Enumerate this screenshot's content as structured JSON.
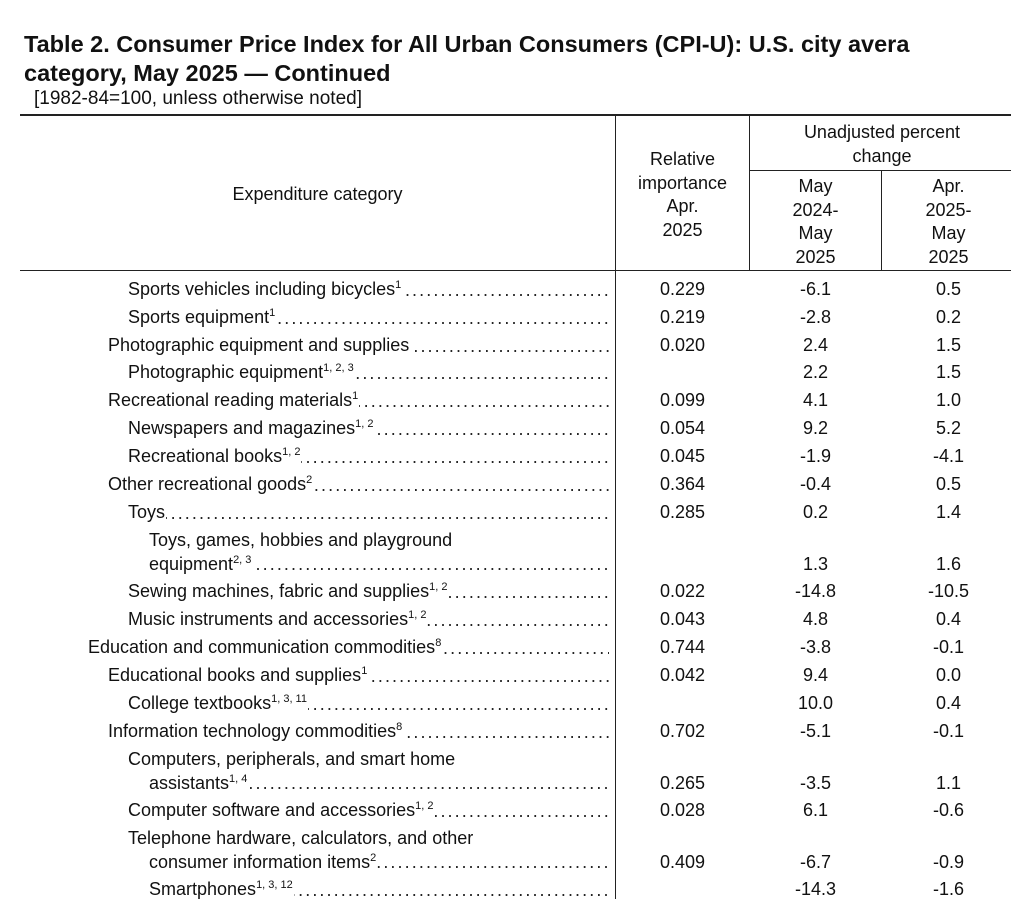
{
  "title_line1": "Table 2. Consumer Price Index for All Urban Consumers (CPI-U): U.S. city avera",
  "title_line2": "category, May 2025 — Continued",
  "subtitle": "[1982-84=100, unless otherwise noted]",
  "headers": {
    "expenditure": "Expenditure category",
    "relative_importance": [
      "Relative",
      "importance",
      "Apr.",
      "2025"
    ],
    "unadjusted": [
      "Unadjusted percent",
      "change"
    ],
    "col_yoy": [
      "May",
      "2024-",
      "May",
      "2025"
    ],
    "col_mom": [
      "Apr.",
      "2025-",
      "May",
      "2025"
    ]
  },
  "dots": "....................................................................................................",
  "rows": [
    {
      "lines": [
        "Sports vehicles including bicycles"
      ],
      "sup": "1",
      "rel": "0.229",
      "yoy": "-6.1",
      "mom": "0.5"
    },
    {
      "lines": [
        "Sports equipment"
      ],
      "sup": "1",
      "rel": "0.219",
      "yoy": "-2.8",
      "mom": "0.2"
    },
    {
      "lines": [
        "Photographic equipment and supplies"
      ],
      "sup": "",
      "rel": "0.020",
      "yoy": "2.4",
      "mom": "1.5"
    },
    {
      "lines": [
        "Photographic equipment"
      ],
      "sup": "1, 2, 3",
      "rel": "",
      "yoy": "2.2",
      "mom": "1.5"
    },
    {
      "lines": [
        "Recreational reading materials"
      ],
      "sup": "1",
      "rel": "0.099",
      "yoy": "4.1",
      "mom": "1.0"
    },
    {
      "lines": [
        "Newspapers and magazines"
      ],
      "sup": "1, 2",
      "rel": "0.054",
      "yoy": "9.2",
      "mom": "5.2"
    },
    {
      "lines": [
        "Recreational books"
      ],
      "sup": "1, 2",
      "rel": "0.045",
      "yoy": "-1.9",
      "mom": "-4.1"
    },
    {
      "lines": [
        "Other recreational goods"
      ],
      "sup": "2",
      "rel": "0.364",
      "yoy": "-0.4",
      "mom": "0.5"
    },
    {
      "lines": [
        "Toys"
      ],
      "sup": "",
      "rel": "0.285",
      "yoy": "0.2",
      "mom": "1.4"
    },
    {
      "lines": [
        "Toys, games, hobbies and playground",
        "equipment"
      ],
      "sup": "2, 3",
      "rel": "",
      "yoy": "1.3",
      "mom": "1.6"
    },
    {
      "lines": [
        "Sewing machines, fabric and supplies"
      ],
      "sup": "1, 2",
      "rel": "0.022",
      "yoy": "-14.8",
      "mom": "-10.5"
    },
    {
      "lines": [
        "Music instruments and accessories"
      ],
      "sup": "1, 2",
      "rel": "0.043",
      "yoy": "4.8",
      "mom": "0.4"
    },
    {
      "lines": [
        "Education and communication commodities"
      ],
      "sup": "8",
      "rel": "0.744",
      "yoy": "-3.8",
      "mom": "-0.1"
    },
    {
      "lines": [
        "Educational books and supplies"
      ],
      "sup": "1",
      "rel": "0.042",
      "yoy": "9.4",
      "mom": "0.0"
    },
    {
      "lines": [
        "College textbooks"
      ],
      "sup": "1, 3, 11",
      "rel": "",
      "yoy": "10.0",
      "mom": "0.4"
    },
    {
      "lines": [
        "Information technology commodities"
      ],
      "sup": "8",
      "rel": "0.702",
      "yoy": "-5.1",
      "mom": "-0.1"
    },
    {
      "lines": [
        "Computers, peripherals, and smart home",
        "assistants"
      ],
      "sup": "1, 4",
      "rel": "0.265",
      "yoy": "-3.5",
      "mom": "1.1"
    },
    {
      "lines": [
        "Computer software and accessories"
      ],
      "sup": "1, 2",
      "rel": "0.028",
      "yoy": "6.1",
      "mom": "-0.6"
    },
    {
      "lines": [
        "Telephone hardware, calculators, and other",
        "consumer information items"
      ],
      "sup": "2",
      "rel": "0.409",
      "yoy": "-6.7",
      "mom": "-0.9"
    },
    {
      "lines": [
        "Smartphones"
      ],
      "sup": "1, 3, 12",
      "rel": "",
      "yoy": "-14.3",
      "mom": "-1.6"
    }
  ]
}
